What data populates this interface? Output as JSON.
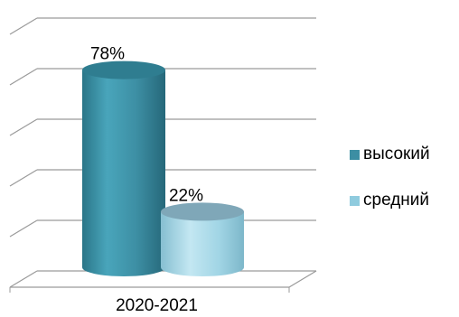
{
  "chart_data": {
    "type": "bar",
    "categories": [
      "2020-2021"
    ],
    "series": [
      {
        "name": "высокий",
        "values": [
          78
        ],
        "label": "78%",
        "color": "#3C8EA3"
      },
      {
        "name": "средний",
        "values": [
          22
        ],
        "label": "22%",
        "color": "#8FCBDE"
      }
    ],
    "ylim": [
      0,
      100
    ],
    "grid": true,
    "legend": "right",
    "title": "",
    "xlabel": "",
    "ylabel": ""
  }
}
